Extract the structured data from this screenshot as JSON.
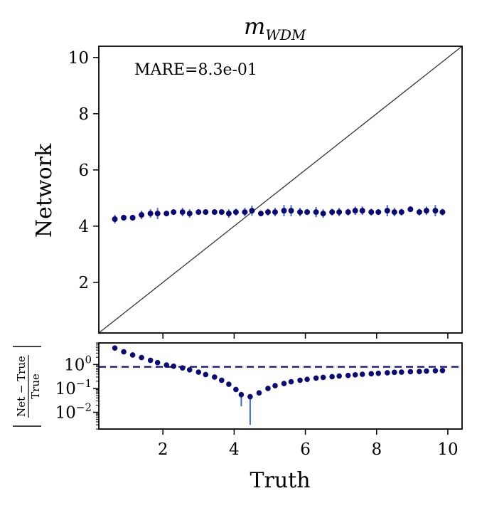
{
  "chart_data": [
    {
      "type": "scatter",
      "title": "m",
      "title_sub": "WDM",
      "xlabel": "",
      "ylabel": "Network",
      "xlim": [
        0.2,
        10.4
      ],
      "ylim": [
        0.2,
        10.4
      ],
      "yticks": [
        "2",
        "4",
        "6",
        "8",
        "10"
      ],
      "yticks_values": [
        2,
        4,
        6,
        8,
        10
      ],
      "annotation": "MARE=8.3e-01",
      "diagonal": true,
      "colors": {
        "points": "#0a0a78",
        "errorbars": "#3d6bd6",
        "diagonal": "#333333"
      },
      "series": [
        {
          "x": [
            0.65,
            0.9,
            1.15,
            1.4,
            1.65,
            1.85,
            2.1,
            2.3,
            2.55,
            2.75,
            3.0,
            3.2,
            3.45,
            3.65,
            3.85,
            4.05,
            4.3,
            4.5,
            4.75,
            4.95,
            5.15,
            5.4,
            5.6,
            5.85,
            6.05,
            6.3,
            6.5,
            6.75,
            6.95,
            7.2,
            7.4,
            7.6,
            7.85,
            8.05,
            8.3,
            8.5,
            8.7,
            8.95,
            9.2,
            9.4,
            9.65,
            9.85
          ],
          "y": [
            4.25,
            4.3,
            4.3,
            4.4,
            4.45,
            4.45,
            4.45,
            4.5,
            4.5,
            4.45,
            4.5,
            4.5,
            4.5,
            4.5,
            4.45,
            4.5,
            4.5,
            4.55,
            4.45,
            4.5,
            4.5,
            4.55,
            4.55,
            4.5,
            4.5,
            4.5,
            4.45,
            4.5,
            4.5,
            4.5,
            4.55,
            4.55,
            4.5,
            4.5,
            4.55,
            4.5,
            4.5,
            4.6,
            4.5,
            4.55,
            4.55,
            4.5
          ],
          "err": [
            0.15,
            0.1,
            0.1,
            0.15,
            0.15,
            0.2,
            0.1,
            0.1,
            0.15,
            0.15,
            0.1,
            0.1,
            0.1,
            0.1,
            0.15,
            0.12,
            0.15,
            0.18,
            0.1,
            0.12,
            0.15,
            0.2,
            0.2,
            0.15,
            0.1,
            0.18,
            0.15,
            0.12,
            0.15,
            0.12,
            0.15,
            0.15,
            0.12,
            0.1,
            0.2,
            0.15,
            0.12,
            0.1,
            0.12,
            0.15,
            0.2,
            0.12
          ]
        }
      ]
    },
    {
      "type": "scatter",
      "xlabel": "Truth",
      "ylabel": "|Net−True / True|",
      "ylabel_num": "Net − True",
      "ylabel_den": "True",
      "xlim": [
        0.2,
        10.4
      ],
      "xticks": [
        "2",
        "4",
        "6",
        "8",
        "10"
      ],
      "xticks_values": [
        2,
        4,
        6,
        8,
        10
      ],
      "yscale": "log",
      "ylim": [
        0.002,
        8
      ],
      "yticks_values": [
        0.01,
        0.1,
        1
      ],
      "ytick_base": "10",
      "ytick_exponents": [
        "−2",
        "−1",
        "0"
      ],
      "hline": 0.8,
      "colors": {
        "points": "#0a0a78",
        "errorbars": "#3d6bd6",
        "hline": "#0a0a78"
      },
      "series": [
        {
          "x": [
            0.65,
            0.9,
            1.15,
            1.4,
            1.65,
            1.85,
            2.1,
            2.3,
            2.55,
            2.75,
            3.0,
            3.2,
            3.45,
            3.65,
            3.85,
            4.05,
            4.2,
            4.45,
            4.7,
            4.95,
            5.15,
            5.4,
            5.6,
            5.85,
            6.05,
            6.3,
            6.5,
            6.75,
            6.95,
            7.2,
            7.4,
            7.6,
            7.85,
            8.05,
            8.3,
            8.5,
            8.7,
            8.95,
            9.2,
            9.4,
            9.65,
            9.85
          ],
          "y": [
            4.9,
            3.4,
            2.5,
            1.95,
            1.5,
            1.2,
            0.95,
            0.85,
            0.72,
            0.6,
            0.48,
            0.38,
            0.3,
            0.22,
            0.15,
            0.09,
            0.055,
            0.045,
            0.065,
            0.1,
            0.13,
            0.16,
            0.19,
            0.22,
            0.24,
            0.27,
            0.29,
            0.31,
            0.33,
            0.35,
            0.37,
            0.39,
            0.41,
            0.43,
            0.45,
            0.47,
            0.48,
            0.5,
            0.51,
            0.53,
            0.55,
            0.56
          ],
          "err_low": [
            0,
            0,
            0,
            0,
            0,
            0,
            0,
            0,
            0,
            0,
            0,
            0,
            0,
            0,
            0,
            0,
            0.037,
            0.042,
            0,
            0,
            0,
            0,
            0,
            0,
            0,
            0,
            0,
            0,
            0,
            0,
            0,
            0,
            0,
            0,
            0,
            0,
            0,
            0,
            0,
            0,
            0,
            0
          ],
          "err_high": [
            0,
            0,
            0,
            0,
            0,
            0,
            0,
            0,
            0,
            0,
            0,
            0,
            0,
            0,
            0,
            0,
            0.01,
            0.01,
            0,
            0,
            0,
            0,
            0,
            0,
            0,
            0,
            0,
            0,
            0,
            0,
            0,
            0,
            0,
            0,
            0,
            0,
            0,
            0,
            0,
            0,
            0,
            0
          ]
        }
      ]
    }
  ]
}
